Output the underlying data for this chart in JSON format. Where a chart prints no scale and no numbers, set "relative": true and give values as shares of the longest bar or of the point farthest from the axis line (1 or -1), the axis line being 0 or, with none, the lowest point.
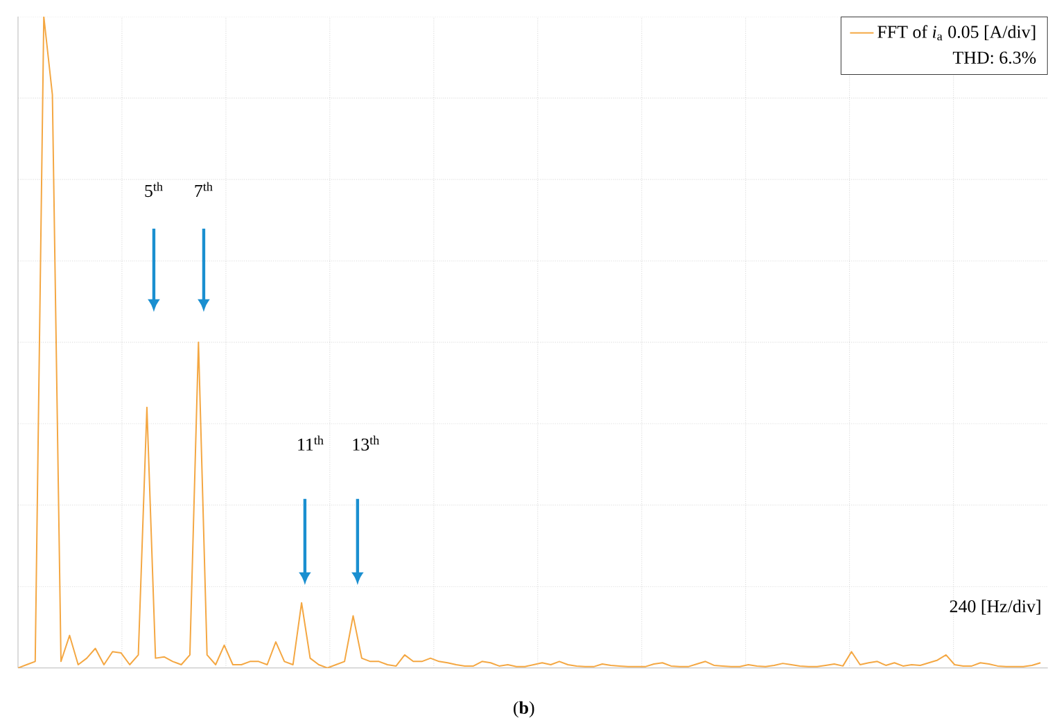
{
  "chart_data": {
    "type": "line",
    "relative": true,
    "grid": true,
    "legend": "top right",
    "categories": [
      null,
      null,
      null,
      null,
      null,
      null,
      null,
      null,
      null,
      null,
      null,
      null,
      null,
      null,
      null,
      null,
      null,
      null,
      null,
      null,
      null,
      null,
      null,
      null,
      null,
      null,
      null,
      null,
      null,
      null,
      null,
      null,
      null,
      null,
      null,
      null,
      null,
      null,
      null,
      null,
      null,
      null,
      null,
      null,
      null,
      null,
      null,
      null,
      null,
      null,
      null,
      null,
      null,
      null,
      null,
      null,
      null,
      null,
      null,
      null,
      null,
      null,
      null,
      null,
      null,
      null,
      null,
      null,
      null,
      null,
      null,
      null,
      null,
      null,
      null,
      null,
      null,
      null,
      null,
      null,
      null,
      null,
      null,
      null,
      null,
      null,
      null,
      null,
      null,
      null,
      null,
      null,
      null,
      null,
      null,
      null,
      null,
      null,
      null,
      null,
      null,
      null,
      null,
      null,
      null,
      null,
      null,
      null,
      null,
      null,
      null,
      null,
      null,
      null,
      null,
      null,
      null,
      null,
      null,
      null
    ],
    "series": [
      {
        "name": "FFT of *i*$_{a}$ 0.05 [A/div]",
        "color": "#f4a742",
        "values": [
          0,
          0.005,
          0.01,
          1,
          0.88,
          0.01,
          0.05,
          0.005,
          0.015,
          0.03,
          0.005,
          0.025,
          0.023,
          0.005,
          0.02,
          0.4,
          0.015,
          0.017,
          0.01,
          0.005,
          0.02,
          0.5,
          0.02,
          0.005,
          0.035,
          0.005,
          0.005,
          0.01,
          0.01,
          0.005,
          0.04,
          0.01,
          0.005,
          0.1,
          0.015,
          0.005,
          0,
          0.005,
          0.01,
          0.08,
          0.015,
          0.01,
          0.01,
          0.005,
          0.003,
          0.02,
          0.01,
          0.01,
          0.015,
          0.01,
          0.008,
          0.005,
          0.003,
          0.003,
          0.01,
          0.008,
          0.003,
          0.005,
          0.002,
          0.002,
          0.005,
          0.008,
          0.005,
          0.01,
          0.005,
          0.003,
          0.002,
          0.002,
          0.006,
          0.004,
          0.003,
          0.002,
          0.002,
          0.002,
          0.006,
          0.008,
          0.003,
          0.002,
          0.002,
          0.006,
          0.01,
          0.004,
          0.003,
          0.002,
          0.002,
          0.005,
          0.003,
          0.002,
          0.004,
          0.007,
          0.005,
          0.003,
          0.002,
          0.002,
          0.004,
          0.006,
          0.003,
          0.025,
          0.005,
          0.008,
          0.01,
          0.004,
          0.008,
          0.003,
          0.005,
          0.004,
          0.008,
          0.012,
          0.02,
          0.005,
          0.003,
          0.003,
          0.008,
          0.006,
          0.003,
          0.002,
          0.002,
          0.002,
          0.004,
          0.008
        ]
      }
    ],
    "annotations": [
      "5$^{th}$",
      "7$^{th}$",
      "11$^{th}$",
      "13$^{th}$",
      "THD: 6.3%",
      "240 [Hz/div]",
      "(**b**)"
    ]
  }
}
